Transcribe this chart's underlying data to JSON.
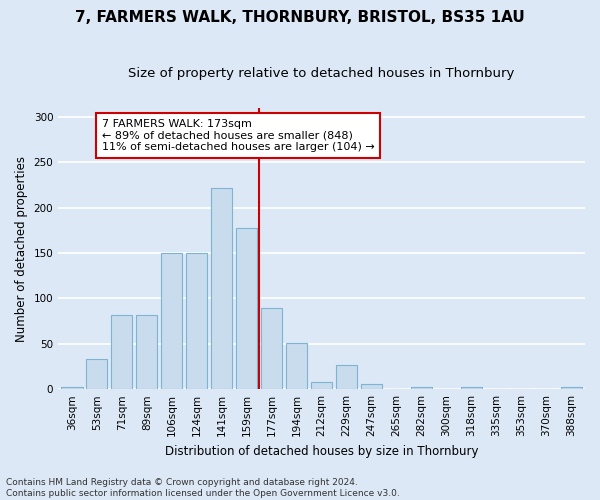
{
  "title": "7, FARMERS WALK, THORNBURY, BRISTOL, BS35 1AU",
  "subtitle": "Size of property relative to detached houses in Thornbury",
  "xlabel": "Distribution of detached houses by size in Thornbury",
  "ylabel": "Number of detached properties",
  "categories": [
    "36sqm",
    "53sqm",
    "71sqm",
    "89sqm",
    "106sqm",
    "124sqm",
    "141sqm",
    "159sqm",
    "177sqm",
    "194sqm",
    "212sqm",
    "229sqm",
    "247sqm",
    "265sqm",
    "282sqm",
    "300sqm",
    "318sqm",
    "335sqm",
    "353sqm",
    "370sqm",
    "388sqm"
  ],
  "values": [
    2,
    33,
    82,
    82,
    150,
    150,
    222,
    178,
    90,
    51,
    8,
    27,
    6,
    0,
    2,
    0,
    2,
    0,
    0,
    0,
    2
  ],
  "bar_color": "#c9dced",
  "bar_edge_color": "#7fb3d3",
  "vline_index": 8,
  "vline_color": "#cc0000",
  "annotation_text": "7 FARMERS WALK: 173sqm\n← 89% of detached houses are smaller (848)\n11% of semi-detached houses are larger (104) →",
  "annotation_box_color": "#ffffff",
  "annotation_box_edge_color": "#cc0000",
  "footnote": "Contains HM Land Registry data © Crown copyright and database right 2024.\nContains public sector information licensed under the Open Government Licence v3.0.",
  "ylim": [
    0,
    310
  ],
  "background_color": "#dce8f5",
  "plot_background_color": "#dce8f5",
  "grid_color": "#ffffff",
  "title_fontsize": 11,
  "subtitle_fontsize": 9.5,
  "axis_label_fontsize": 8.5,
  "tick_fontsize": 7.5,
  "footnote_fontsize": 6.5
}
